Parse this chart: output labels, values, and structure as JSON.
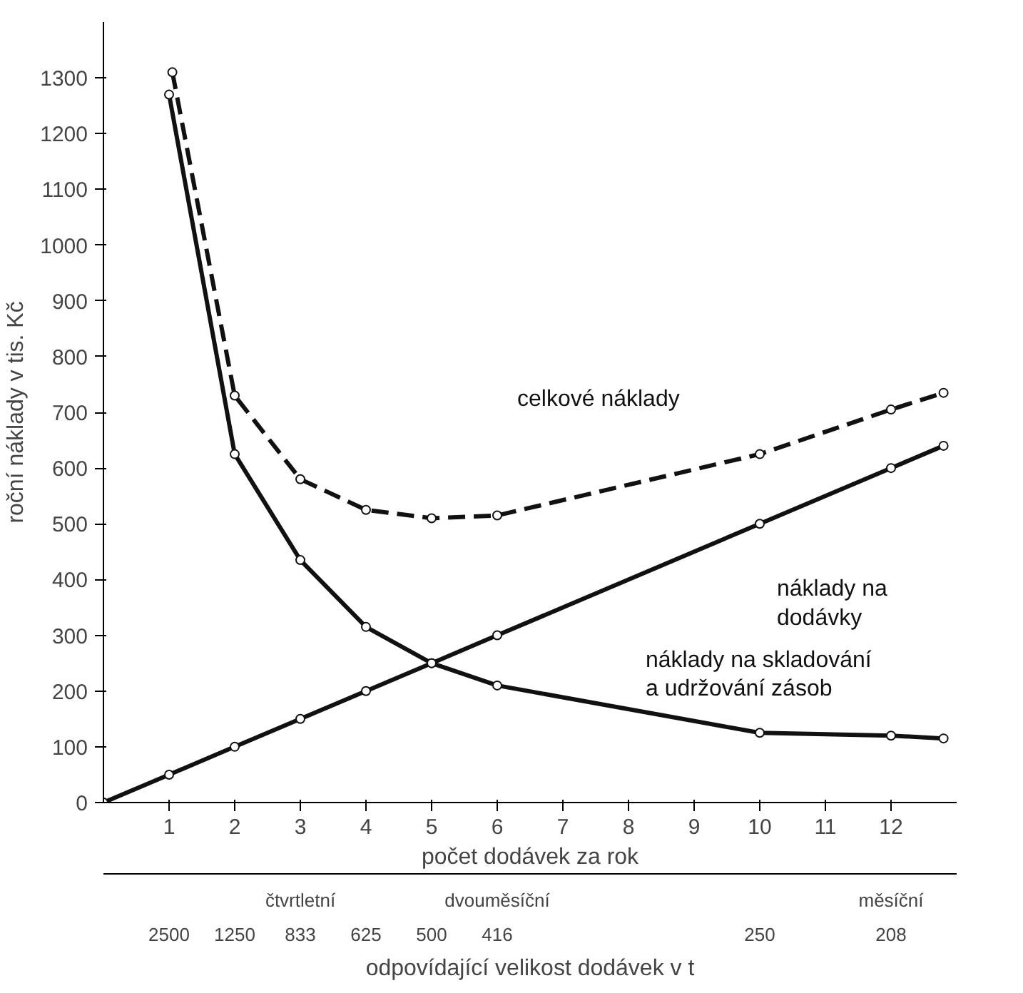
{
  "chart_data": {
    "type": "line",
    "ylabel": "roční náklady v tis. Kč",
    "xlabel": "počet dodávek za rok",
    "xlim": [
      0,
      13
    ],
    "ylim": [
      0,
      1400
    ],
    "xticks": [
      1,
      2,
      3,
      4,
      5,
      6,
      7,
      8,
      9,
      10,
      11,
      12
    ],
    "yticks": [
      0,
      100,
      200,
      300,
      400,
      500,
      600,
      700,
      800,
      900,
      1000,
      1100,
      1200,
      1300
    ],
    "grid": false,
    "marker": "circle",
    "series": [
      {
        "name": "celkové náklady",
        "color": "#111111",
        "line_style": "dashed",
        "x": [
          1.05,
          2,
          3,
          4,
          5,
          6,
          10,
          12,
          12.8
        ],
        "values": [
          1310,
          730,
          580,
          525,
          510,
          515,
          625,
          705,
          735
        ]
      },
      {
        "name": "náklady na\ndodávky",
        "color": "#111111",
        "line_style": "solid",
        "x": [
          0,
          1,
          2,
          3,
          4,
          5,
          6,
          10,
          12,
          12.8
        ],
        "values": [
          0,
          50,
          100,
          150,
          200,
          250,
          300,
          500,
          600,
          640
        ]
      },
      {
        "name": "náklady na skladování\na udržování zásob",
        "color": "#111111",
        "line_style": "solid",
        "x": [
          1,
          2,
          3,
          4,
          5,
          6,
          10,
          12,
          12.8
        ],
        "values": [
          1270,
          625,
          435,
          315,
          250,
          210,
          125,
          120,
          115
        ]
      }
    ],
    "annotations": [
      "odpovídající velikost dodávek v t",
      "čtvrtletní",
      "dvouměsíční",
      "měsíční",
      "2500",
      "1250",
      "833",
      "625",
      "500",
      "416",
      "250",
      "208"
    ]
  }
}
